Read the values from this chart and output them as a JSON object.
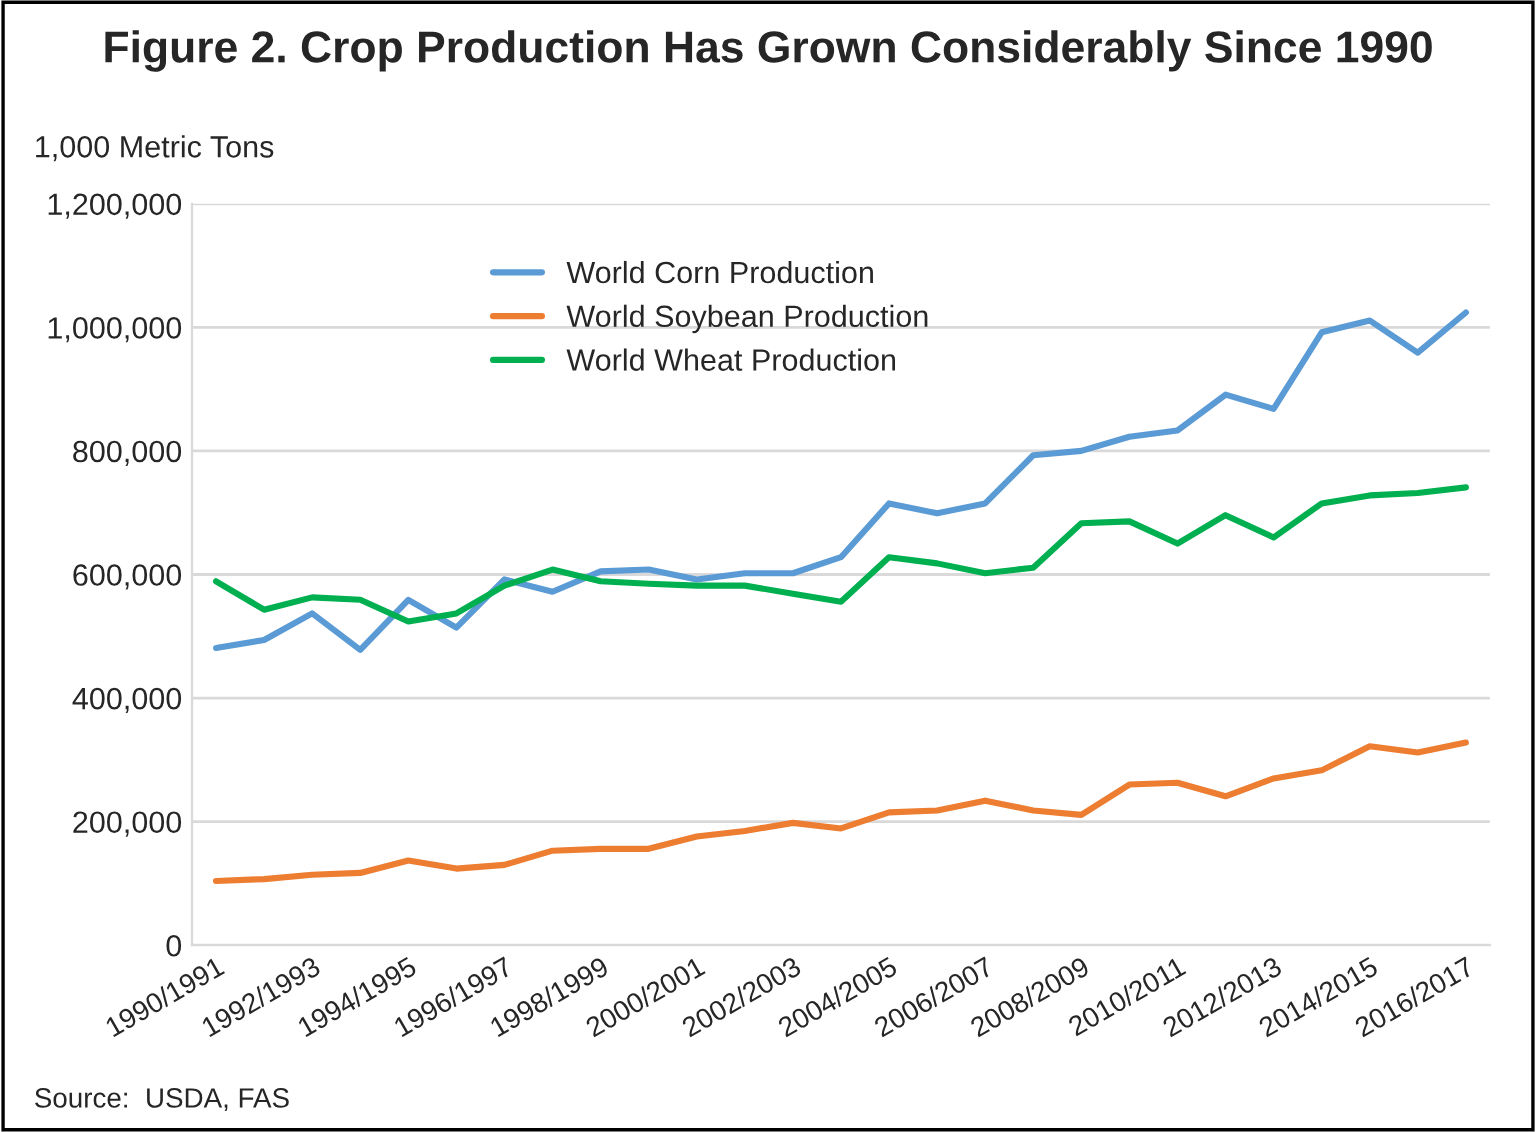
{
  "chart_data": {
    "type": "line",
    "title": "Figure 2. Crop Production Has Grown Considerably Since 1990",
    "ylabel": "1,000 Metric Tons",
    "categories": [
      "1990/1991",
      null,
      "1992/1993",
      null,
      "1994/1995",
      null,
      "1996/1997",
      null,
      "1998/1999",
      null,
      "2000/2001",
      null,
      "2002/2003",
      null,
      "2004/2005",
      null,
      "2006/2007",
      null,
      "2008/2009",
      null,
      "2010/2011",
      null,
      "2012/2013",
      null,
      "2014/2015",
      null,
      "2016/2017"
    ],
    "series": [
      {
        "name": "World Corn Production",
        "color": "#5b9bd5",
        "values": [
          481000,
          494000,
          537000,
          478000,
          559000,
          514000,
          592000,
          572000,
          605000,
          608000,
          592000,
          602000,
          602000,
          628000,
          715000,
          699000,
          715000,
          793000,
          800000,
          823000,
          833000,
          891000,
          868000,
          992000,
          1011000,
          959000,
          1024000
        ]
      },
      {
        "name": "World Soybean Production",
        "color": "#ed7d31",
        "values": [
          104000,
          107000,
          114000,
          117000,
          137000,
          124000,
          130000,
          153000,
          156000,
          156000,
          176000,
          185000,
          198000,
          189000,
          215000,
          218000,
          234000,
          218000,
          211000,
          260000,
          263000,
          241000,
          270000,
          283000,
          322000,
          312000,
          328000
        ]
      },
      {
        "name": "World Wheat Production",
        "color": "#00b050",
        "values": [
          589000,
          543000,
          563000,
          559000,
          524000,
          537000,
          582000,
          608000,
          589000,
          585000,
          582000,
          582000,
          569000,
          556000,
          628000,
          618000,
          602000,
          611000,
          683000,
          686000,
          650000,
          696000,
          660000,
          715000,
          728000,
          732000,
          741000
        ]
      }
    ],
    "ylim": [
      0,
      1200000
    ],
    "yticks": [
      {
        "value": 0,
        "label": "0"
      },
      {
        "value": 200000,
        "label": "200,000"
      },
      {
        "value": 400000,
        "label": "400,000"
      },
      {
        "value": 600000,
        "label": "600,000"
      },
      {
        "value": 800000,
        "label": "800,000"
      },
      {
        "value": 1000000,
        "label": "1,000,000"
      },
      {
        "value": 1200000,
        "label": "1,200,000"
      }
    ],
    "grid": "y",
    "legend": "top",
    "line_style": "solid",
    "marker": "none",
    "annotations": [
      "Source:  USDA, FAS"
    ]
  }
}
